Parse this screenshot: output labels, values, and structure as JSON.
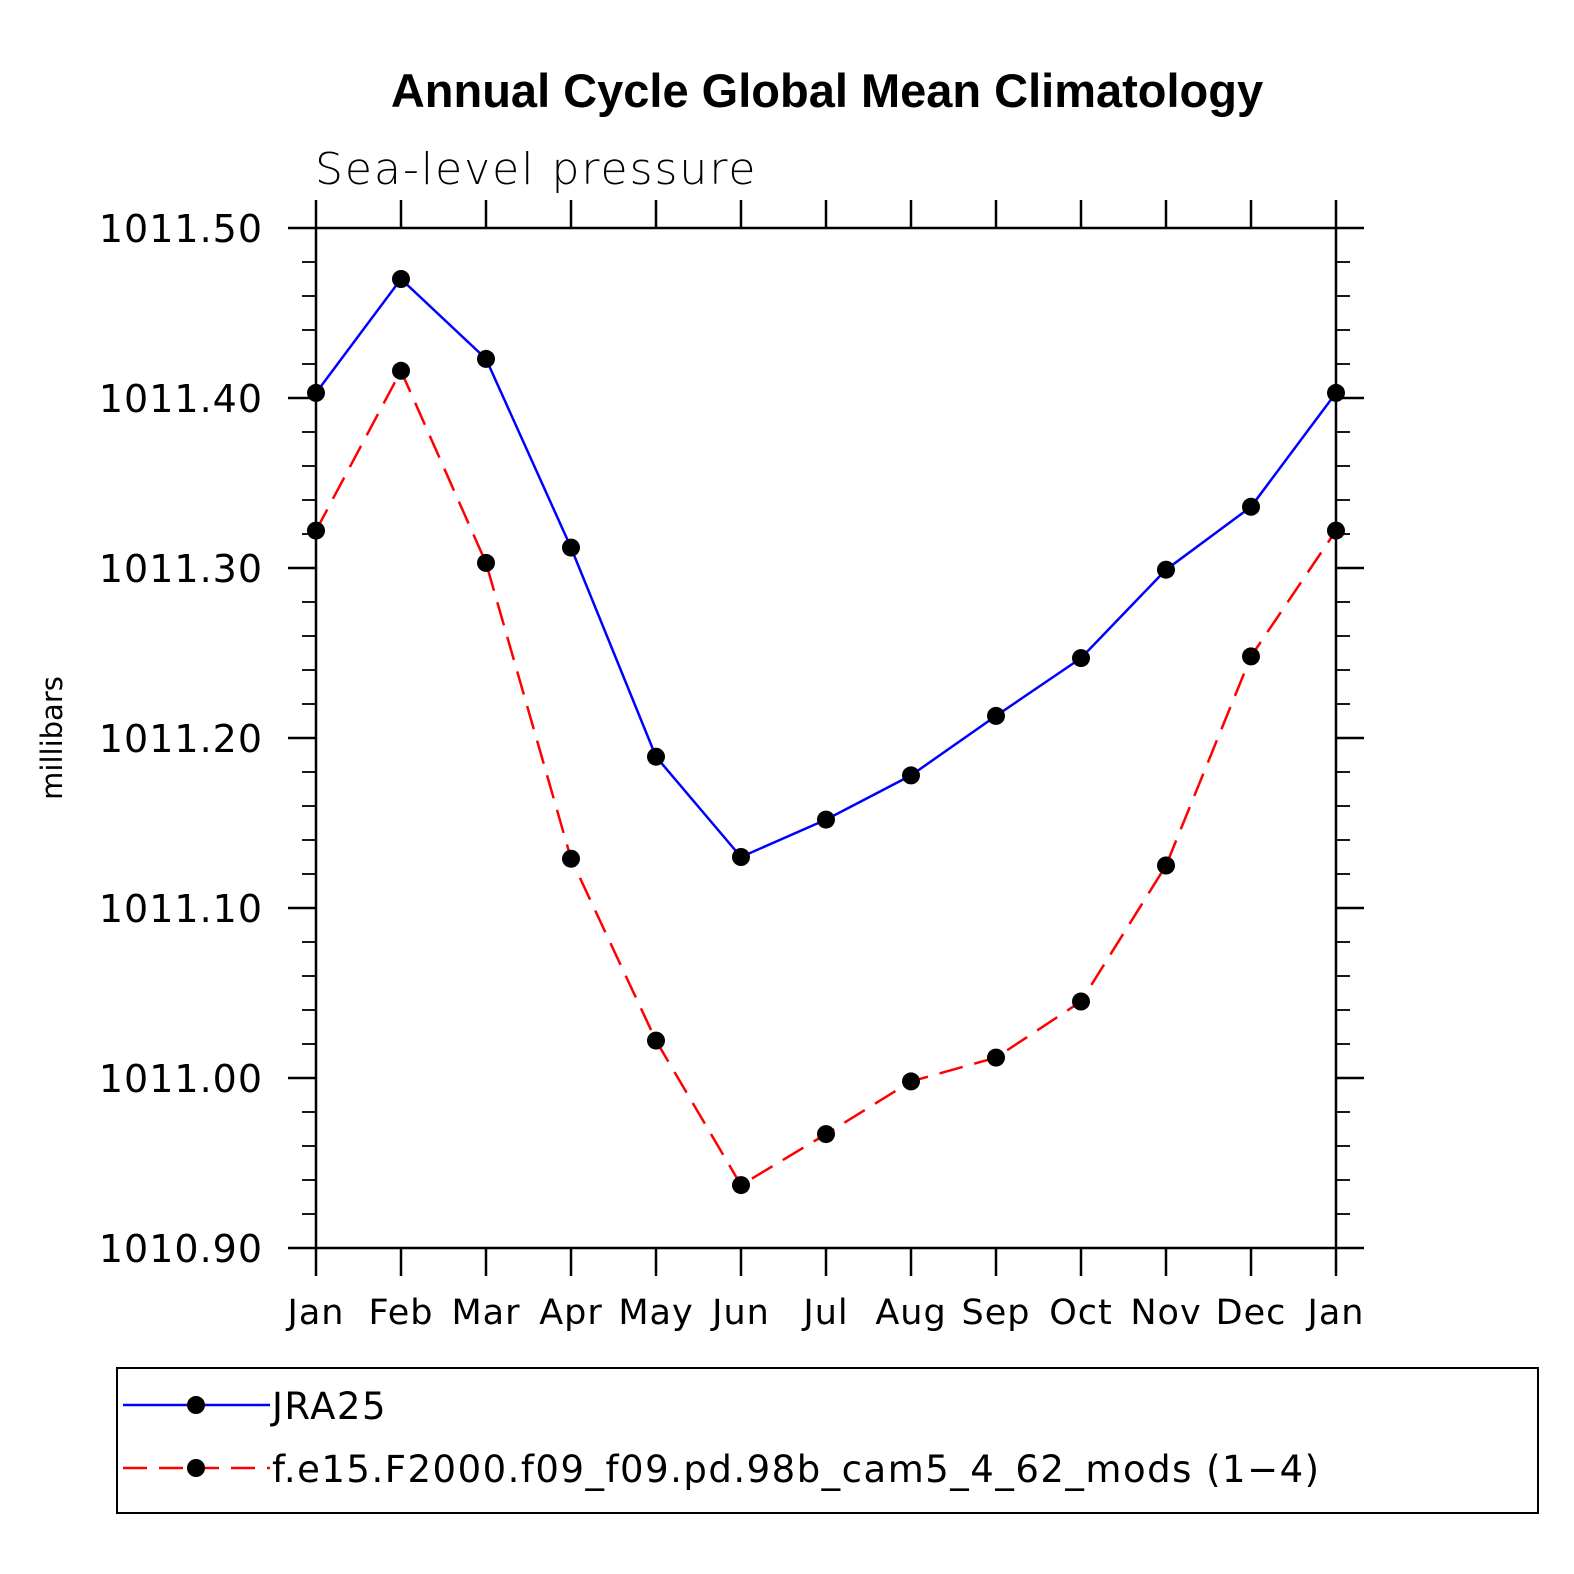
{
  "chart_data": {
    "type": "line",
    "title": "Annual Cycle Global Mean Climatology",
    "subtitle": "Sea-level pressure",
    "ylabel": "millibars",
    "xlabel": "",
    "categories": [
      "Jan",
      "Feb",
      "Mar",
      "Apr",
      "May",
      "Jun",
      "Jul",
      "Aug",
      "Sep",
      "Oct",
      "Nov",
      "Dec",
      "Jan"
    ],
    "ylim": [
      1010.9,
      1011.5
    ],
    "yticks": [
      "1010.90",
      "1011.00",
      "1011.10",
      "1011.20",
      "1011.30",
      "1011.40",
      "1011.50"
    ],
    "grid": false,
    "legend_position": "bottom",
    "series": [
      {
        "name": "JRA25",
        "color": "#0000ff",
        "dash": "solid",
        "marker": "filled-circle",
        "values": [
          1011.403,
          1011.47,
          1011.423,
          1011.312,
          1011.189,
          1011.13,
          1011.152,
          1011.178,
          1011.213,
          1011.247,
          1011.299,
          1011.336,
          1011.403
        ]
      },
      {
        "name": "f.e15.F2000.f09_f09.pd.98b_cam5_4_62_mods (1−4)",
        "color": "#ff0000",
        "dash": "dashed",
        "marker": "filled-circle",
        "values": [
          1011.322,
          1011.416,
          1011.303,
          1011.129,
          1011.022,
          1010.937,
          1010.967,
          1010.998,
          1011.012,
          1011.045,
          1011.125,
          1011.248,
          1011.322
        ]
      }
    ]
  }
}
